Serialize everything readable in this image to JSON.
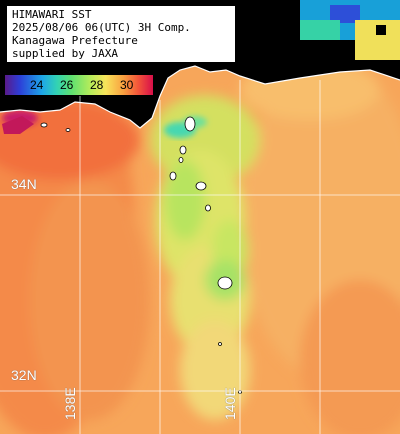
{
  "title_lines": [
    "HIMAWARI SST",
    "2025/08/06 06(UTC) 3H Comp.",
    "Kanagawa Prefecture",
    "supplied by JAXA"
  ],
  "legend": {
    "ticks": [
      "24",
      "26",
      "28",
      "30"
    ],
    "colors": [
      "#5a1a8a",
      "#2d3fd8",
      "#1ea6e8",
      "#32d2b4",
      "#5fe070",
      "#b8ec5a",
      "#f7e45a",
      "#f9a040",
      "#f3553a",
      "#d80f4a"
    ]
  },
  "grid_labels": {
    "lat_34": "34N",
    "lat_32": "32N",
    "lon_138": "138E",
    "lon_140": "140E"
  }
}
